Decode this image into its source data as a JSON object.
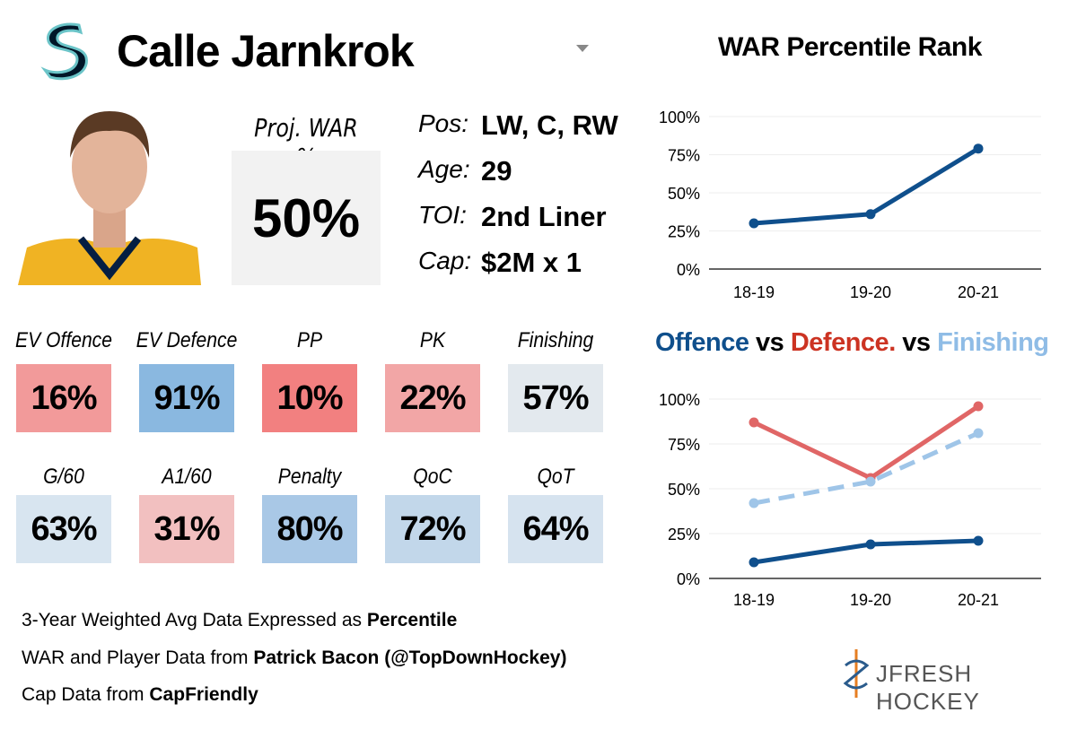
{
  "player": {
    "name": "Calle Jarnkrok",
    "proj_war_label": "Proj. WAR %",
    "proj_war": "50%",
    "info": [
      {
        "k": "Pos:",
        "v": "LW, C, RW"
      },
      {
        "k": "Age:",
        "v": "29"
      },
      {
        "k": "TOI:",
        "v": "2nd Liner"
      },
      {
        "k": "Cap:",
        "v": "$2M x 1"
      }
    ]
  },
  "tiles": [
    {
      "label": "EV Offence",
      "value": "16%",
      "color": "#f29a9a"
    },
    {
      "label": "EV Defence",
      "value": "91%",
      "color": "#8ab8e0"
    },
    {
      "label": "PP",
      "value": "10%",
      "color": "#f28080"
    },
    {
      "label": "PK",
      "value": "22%",
      "color": "#f2a6a6"
    },
    {
      "label": "Finishing",
      "value": "57%",
      "color": "#e3e9ee"
    },
    {
      "label": "G/60",
      "value": "63%",
      "color": "#d8e5f0"
    },
    {
      "label": "A1/60",
      "value": "31%",
      "color": "#f2c0c0"
    },
    {
      "label": "Penalty",
      "value": "80%",
      "color": "#a9c8e6"
    },
    {
      "label": "QoC",
      "value": "72%",
      "color": "#c2d7ea"
    },
    {
      "label": "QoT",
      "value": "64%",
      "color": "#d6e3ef"
    }
  ],
  "footer": {
    "l1a": "3-Year Weighted Avg Data Expressed as ",
    "l1b": "Percentile",
    "l2a": "WAR and Player Data from ",
    "l2b": "Patrick Bacon (@TopDownHockey)",
    "l3a": "Cap Data from ",
    "l3b": "CapFriendly"
  },
  "brand": "JFRESH HOCKEY",
  "chart_data": [
    {
      "type": "line",
      "title": "WAR Percentile Rank",
      "categories": [
        "18-19",
        "19-20",
        "20-21"
      ],
      "yticks": [
        "0%",
        "25%",
        "50%",
        "75%",
        "100%"
      ],
      "ylim": [
        0,
        100
      ],
      "series": [
        {
          "values": [
            30,
            36,
            79
          ],
          "color": "#0f4f8c"
        }
      ]
    },
    {
      "type": "line",
      "title_parts": [
        "Offence",
        " vs ",
        "Defence.",
        " vs ",
        "Finishing"
      ],
      "categories": [
        "18-19",
        "19-20",
        "20-21"
      ],
      "yticks": [
        "0%",
        "25%",
        "50%",
        "75%",
        "100%"
      ],
      "ylim": [
        0,
        100
      ],
      "series": [
        {
          "name": "Offence",
          "values": [
            9,
            19,
            21
          ],
          "color": "#0f4f8c",
          "dash": false
        },
        {
          "name": "Defence.",
          "values": [
            87,
            56,
            96
          ],
          "color": "#e06666",
          "dash": false
        },
        {
          "name": "Finishing",
          "values": [
            42,
            54,
            81
          ],
          "color": "#9fc5e8",
          "dash": true
        }
      ]
    }
  ]
}
